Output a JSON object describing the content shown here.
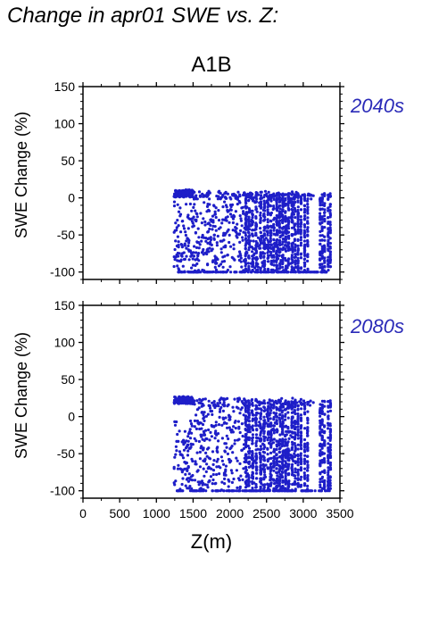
{
  "figure_title": "Change in apr01 SWE vs. Z:",
  "scenario_title": "A1B",
  "colors": {
    "points": "#1e1ec8",
    "period_label": "#2a2ab8",
    "axes": "#000000"
  },
  "chart_data": [
    {
      "type": "scatter",
      "panel_label": "2040s",
      "ylabel": "SWE Change (%)",
      "xlabel": "",
      "xlim": [
        0,
        3500
      ],
      "ylim": [
        -110,
        150
      ],
      "yticks": [
        -100,
        -50,
        0,
        50,
        100,
        150
      ],
      "xticks": [
        0,
        500,
        1000,
        1500,
        2000,
        2500,
        3000,
        3500
      ],
      "x_tick_labels_shown": false,
      "grid": false,
      "point_clusters": [
        {
          "x_min": 1250,
          "x_max": 1500,
          "y_min": -100,
          "y_max": 14,
          "density": "dense top band near 10"
        },
        {
          "x_min": 1500,
          "x_max": 2200,
          "y_min": -100,
          "y_max": 14,
          "density": "scattered"
        },
        {
          "x_min": 2200,
          "x_max": 2900,
          "y_min": -100,
          "y_max": 12,
          "density": "dense vertical columns"
        },
        {
          "x_min": 2900,
          "x_max": 3400,
          "y_min": -100,
          "y_max": 8,
          "density": "columns"
        }
      ]
    },
    {
      "type": "scatter",
      "panel_label": "2080s",
      "ylabel": "SWE Change (%)",
      "xlabel": "Z(m)",
      "xlim": [
        0,
        3500
      ],
      "ylim": [
        -110,
        150
      ],
      "yticks": [
        -100,
        -50,
        0,
        50,
        100,
        150
      ],
      "xticks": [
        0,
        500,
        1000,
        1500,
        2000,
        2500,
        3000,
        3500
      ],
      "x_tick_labels_shown": true,
      "grid": false,
      "point_clusters": [
        {
          "x_min": 1230,
          "x_max": 1500,
          "y_min": -100,
          "y_max": 30,
          "density": "dense top band near 25"
        },
        {
          "x_min": 1500,
          "x_max": 2200,
          "y_min": -100,
          "y_max": 20,
          "density": "scattered"
        },
        {
          "x_min": 2200,
          "x_max": 2900,
          "y_min": -100,
          "y_max": 18,
          "density": "dense vertical columns"
        },
        {
          "x_min": 2900,
          "x_max": 3400,
          "y_min": -100,
          "y_max": 12,
          "density": "columns"
        }
      ]
    }
  ]
}
